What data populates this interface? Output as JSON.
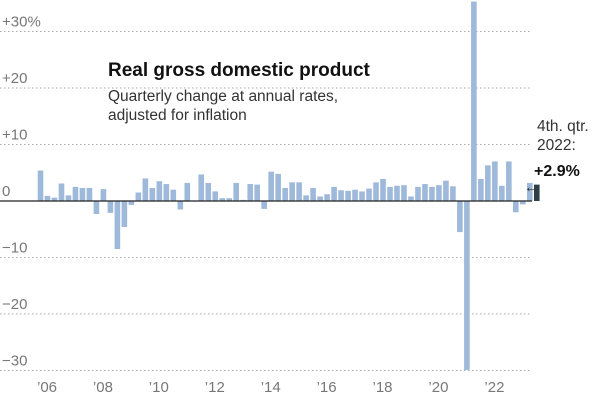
{
  "chart_data": {
    "type": "bar",
    "title": "Real gross domestic product",
    "subtitle_lines": [
      "Quarterly change at annual rates,",
      "adjusted for inflation"
    ],
    "xlabel": "",
    "ylabel": "",
    "ylim": [
      -30,
      35
    ],
    "y_ticks": [
      {
        "value": 30,
        "label": "+30%"
      },
      {
        "value": 20,
        "label": "+20"
      },
      {
        "value": 10,
        "label": "+10"
      },
      {
        "value": 0,
        "label": "0"
      },
      {
        "value": -10,
        "label": "−10"
      },
      {
        "value": -20,
        "label": "−20"
      },
      {
        "value": -30,
        "label": "−30"
      }
    ],
    "x_ticks": [
      {
        "year": 2006,
        "label": "’06"
      },
      {
        "year": 2008,
        "label": "’08"
      },
      {
        "year": 2010,
        "label": "’10"
      },
      {
        "year": 2012,
        "label": "’12"
      },
      {
        "year": 2014,
        "label": "’14"
      },
      {
        "year": 2016,
        "label": "’16"
      },
      {
        "year": 2018,
        "label": "’18"
      },
      {
        "year": 2020,
        "label": "’20"
      },
      {
        "year": 2022,
        "label": "’22"
      }
    ],
    "grid": true,
    "colors": {
      "bar": "#9fb9da",
      "highlight": "#2e3f48",
      "grid": "#aaaaaa",
      "axis": "#222222"
    },
    "series": [
      {
        "start": "2006 Q1",
        "values": [
          5.4,
          0.9,
          0.6,
          3.1,
          1.0,
          2.5,
          2.3,
          2.3,
          -2.3,
          2.1,
          -2.1,
          -8.5,
          -4.6,
          -0.7,
          1.5,
          4.0,
          2.3,
          3.5,
          3.0,
          2.0,
          -1.5,
          3.2,
          0.0,
          4.7,
          3.2,
          1.7,
          0.5,
          0.5,
          3.2,
          0.2,
          3.0,
          2.9,
          -1.4,
          5.2,
          4.8,
          2.3,
          3.3,
          3.3,
          1.0,
          2.3,
          0.8,
          1.2,
          2.5,
          1.9,
          1.8,
          2.0,
          1.7,
          2.2,
          3.3,
          3.9,
          2.5,
          2.7,
          2.8,
          0.8,
          2.5,
          3.0,
          2.5,
          2.8,
          3.6,
          2.6,
          -5.5,
          -29.9,
          35.3,
          3.9,
          6.3,
          7.0,
          2.7,
          7.0,
          -2.0,
          -0.6,
          3.2,
          2.9
        ]
      }
    ],
    "annotation": {
      "lines": [
        "4th. qtr.",
        "2022:"
      ],
      "value": "+2.9%",
      "arrow": "←"
    }
  }
}
